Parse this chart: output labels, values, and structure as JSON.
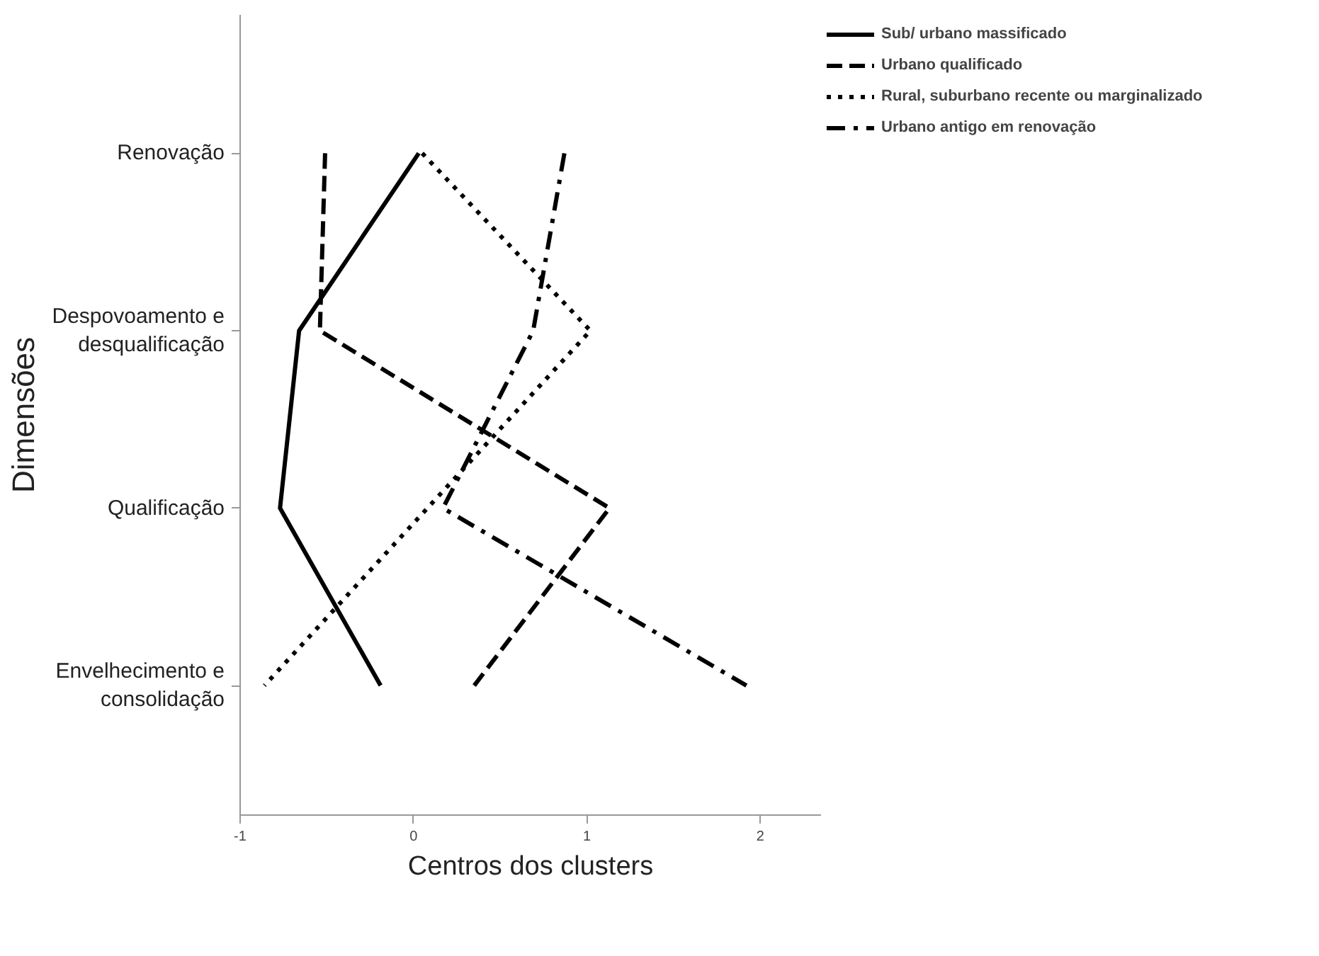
{
  "chart_data": {
    "type": "line",
    "orientation": "horizontal",
    "xlabel": "Centros dos clusters",
    "ylabel": "Dimensões",
    "categories": [
      "Renovação",
      "Despovoamento e desqualificação",
      "Qualificação",
      "Envelhecimento e consolidação"
    ],
    "xlim": [
      -1,
      2.35
    ],
    "xticks": [
      -1,
      0,
      1,
      2
    ],
    "grid": false,
    "legend": "top right",
    "marker": "none",
    "series": [
      {
        "name": "Sub/ urbano massificado",
        "color": "#000000",
        "line_style": "solid",
        "values": [
          0.03,
          -0.66,
          -0.77,
          -0.19
        ]
      },
      {
        "name": "Urbano qualificado",
        "color": "#000000",
        "line_style": "dashed",
        "values": [
          -0.51,
          -0.54,
          1.13,
          0.35
        ]
      },
      {
        "name": "Rural, suburbano recente ou marginalizado",
        "color": "#000000",
        "line_style": "dotted",
        "values": [
          0.05,
          1.02,
          0.08,
          -0.86
        ]
      },
      {
        "name": "Urbano antigo em renovação",
        "color": "#000000",
        "line_style": "dashdot",
        "values": [
          0.87,
          0.69,
          0.17,
          1.92
        ]
      }
    ]
  }
}
